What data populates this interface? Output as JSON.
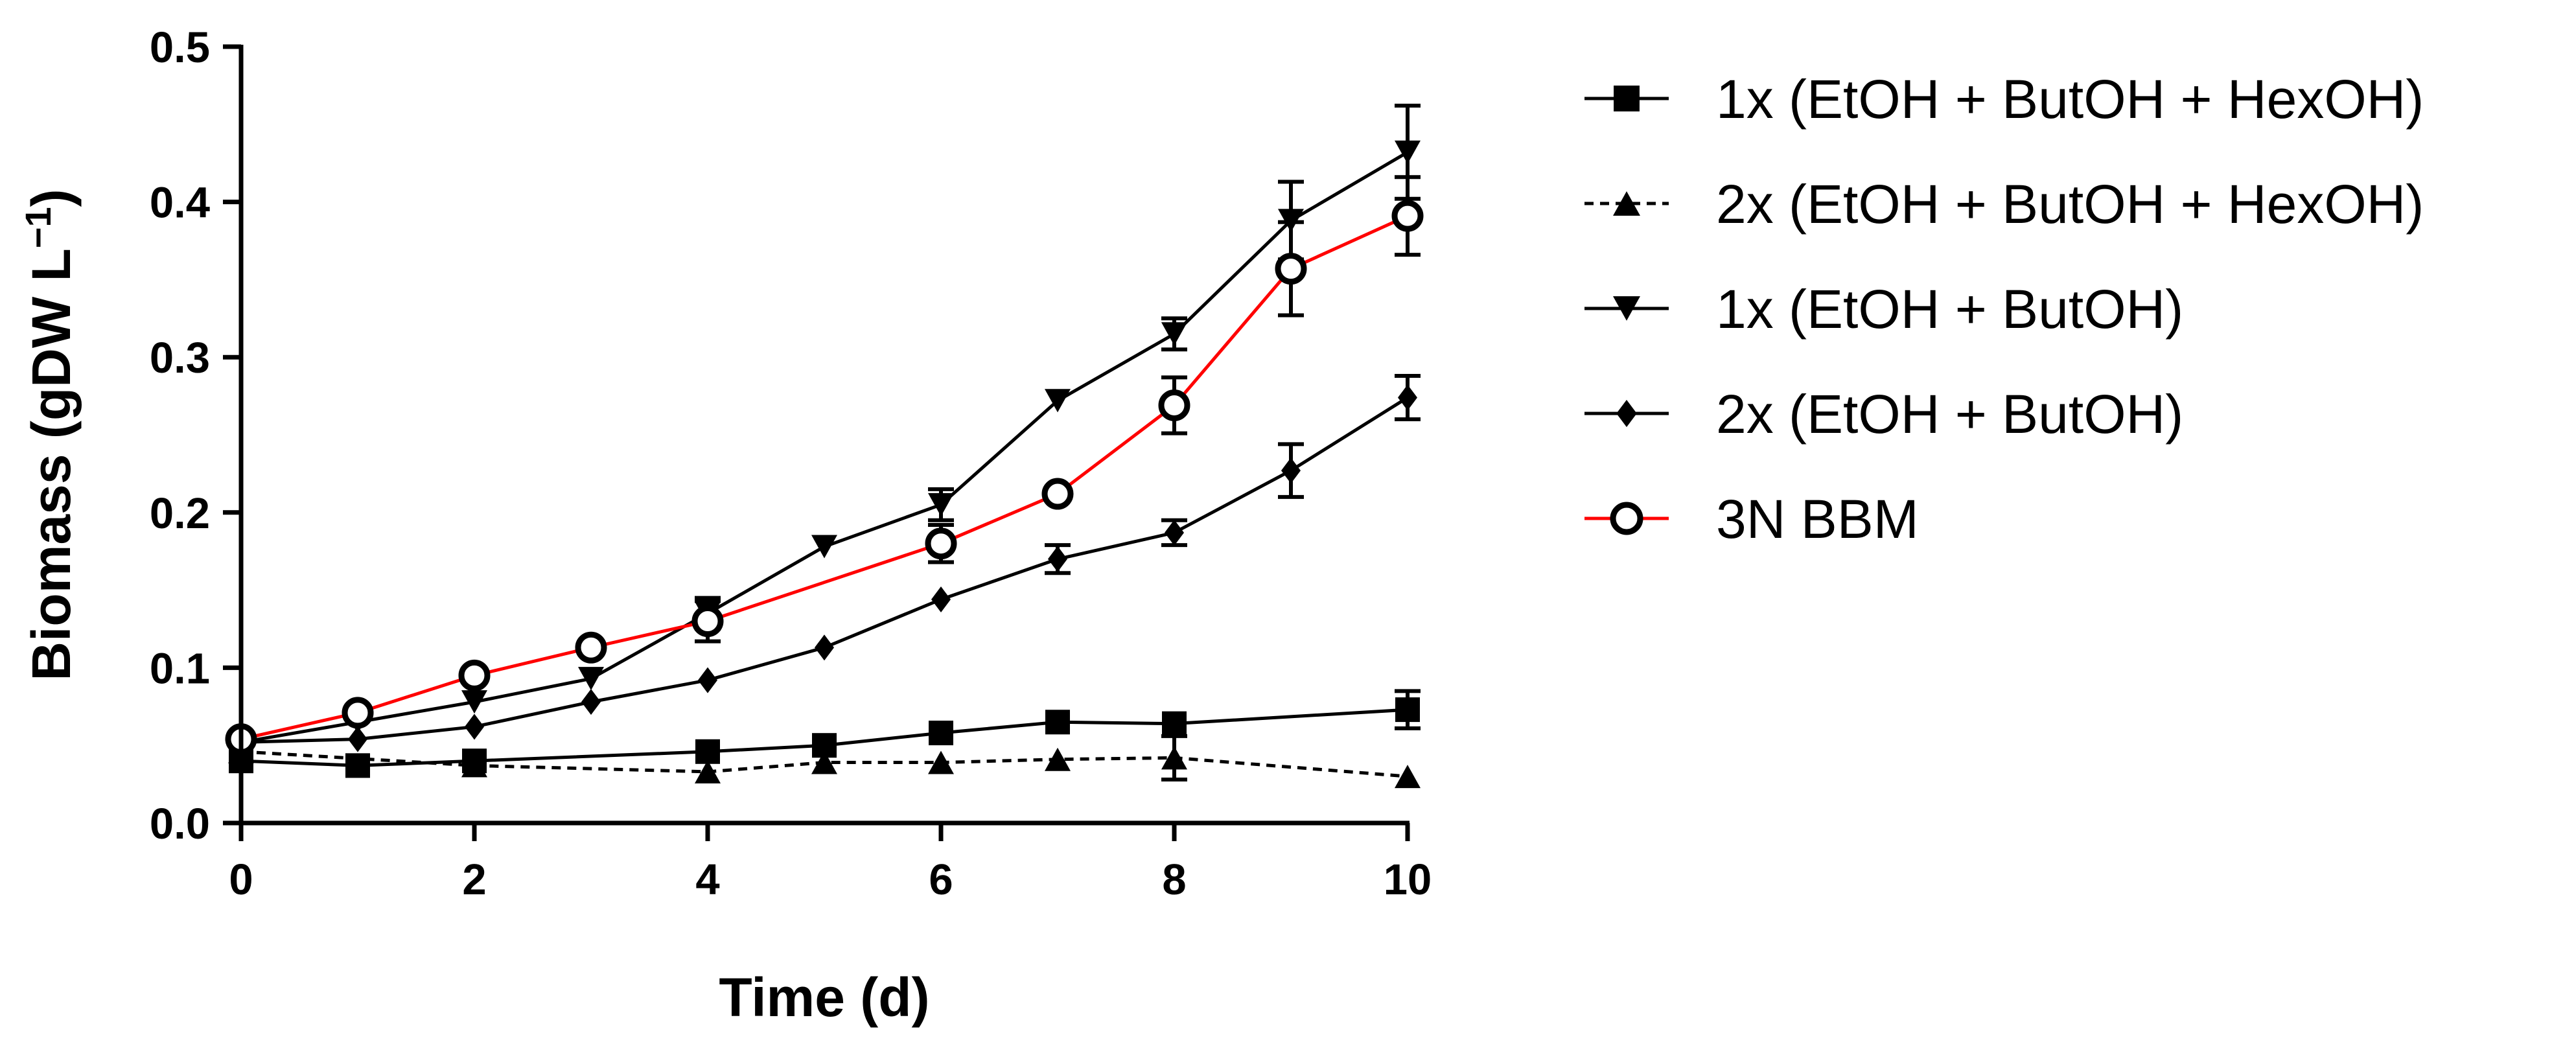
{
  "chart_data": {
    "type": "line",
    "title": "",
    "xlabel": "Time (d)",
    "ylabel": {
      "main": "Biomass (gDW L",
      "superscript": "−1",
      "close": ")"
    },
    "xlim": [
      0,
      10
    ],
    "ylim": [
      0,
      0.5
    ],
    "xticks": [
      0,
      2,
      4,
      6,
      8,
      10
    ],
    "xtick_labels": [
      "0",
      "2",
      "4",
      "6",
      "8",
      "10"
    ],
    "yticks": [
      0,
      0.1,
      0.2,
      0.3,
      0.4,
      0.5
    ],
    "ytick_labels": [
      "0.0",
      "0.1",
      "0.2",
      "0.3",
      "0.4",
      "0.5"
    ],
    "legend_position": "right",
    "series": [
      {
        "name": "1x (EtOH + ButOH + HexOH)",
        "marker": "square",
        "line": "solid",
        "color": "#000000",
        "marker_fill": "#000000",
        "x": [
          0,
          1,
          2,
          4,
          5,
          6,
          7,
          8,
          10
        ],
        "y": [
          0.04,
          0.037,
          0.04,
          0.046,
          0.05,
          0.058,
          0.065,
          0.064,
          0.073
        ],
        "err": [
          0,
          0,
          0,
          0,
          0,
          0,
          0,
          0,
          0.012
        ]
      },
      {
        "name": "2x (EtOH + ButOH + HexOH)",
        "marker": "triangle-up",
        "line": "dashed",
        "color": "#000000",
        "marker_fill": "#000000",
        "x": [
          0,
          2,
          4,
          5,
          6,
          7,
          8,
          10
        ],
        "y": [
          0.046,
          0.037,
          0.033,
          0.039,
          0.039,
          0.041,
          0.042,
          0.03
        ],
        "err": [
          0,
          0,
          0,
          0,
          0,
          0,
          0.014,
          0
        ]
      },
      {
        "name": "1x (EtOH + ButOH)",
        "marker": "triangle-down",
        "line": "solid",
        "color": "#000000",
        "marker_fill": "#000000",
        "x": [
          0,
          1,
          2,
          3,
          4,
          5,
          6,
          7,
          8,
          9,
          10
        ],
        "y": [
          0.052,
          0.065,
          0.078,
          0.093,
          0.135,
          0.178,
          0.205,
          0.272,
          0.315,
          0.388,
          0.432
        ],
        "err": [
          0,
          0,
          0,
          0,
          0.01,
          0,
          0.01,
          0,
          0.01,
          0.025,
          0.03
        ]
      },
      {
        "name": "2x (EtOH + ButOH)",
        "marker": "diamond",
        "line": "solid",
        "color": "#000000",
        "marker_fill": "#000000",
        "x": [
          0,
          1,
          2,
          3,
          4,
          5,
          6,
          7,
          8,
          9,
          10
        ],
        "y": [
          0.052,
          0.054,
          0.062,
          0.078,
          0.092,
          0.113,
          0.144,
          0.17,
          0.187,
          0.227,
          0.274
        ],
        "err": [
          0,
          0,
          0,
          0,
          0,
          0,
          0,
          0.009,
          0.008,
          0.017,
          0.014
        ]
      },
      {
        "name": "3N BBM",
        "marker": "circle-open",
        "line": "solid",
        "color": "#ff0000",
        "marker_fill": "#ffffff",
        "x": [
          0,
          1,
          2,
          3,
          4,
          6,
          7,
          8,
          9,
          10
        ],
        "y": [
          0.054,
          0.071,
          0.095,
          0.113,
          0.13,
          0.18,
          0.212,
          0.269,
          0.357,
          0.391
        ],
        "err": [
          0,
          0,
          0,
          0,
          0.013,
          0.012,
          0,
          0.018,
          0.03,
          0.025
        ]
      }
    ]
  }
}
